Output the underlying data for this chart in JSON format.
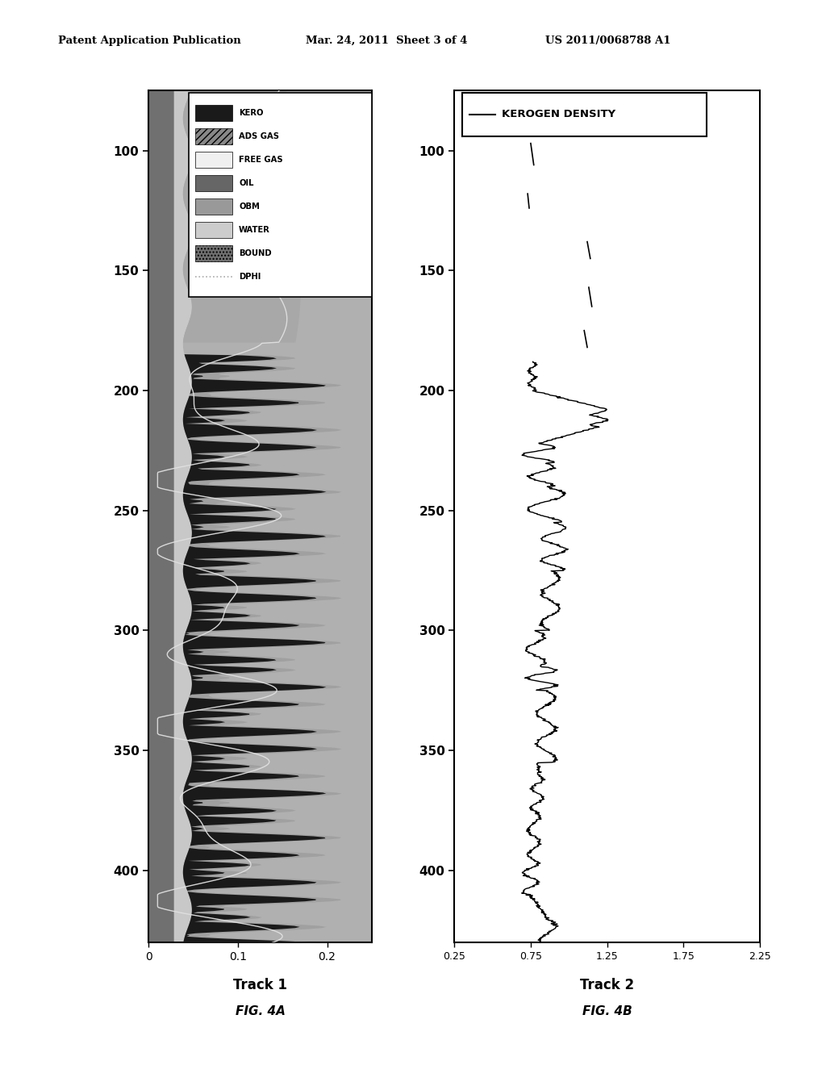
{
  "header_left": "Patent Application Publication",
  "header_center": "Mar. 24, 2011  Sheet 3 of 4",
  "header_right": "US 2011/0068788 A1",
  "depth_min": 75,
  "depth_max": 430,
  "track1_xticks": [
    0,
    0.1,
    0.2
  ],
  "track1_xlabel": "Track 1",
  "track1_fig": "FIG. 4A",
  "track2_xticks": [
    0.25,
    0.75,
    1.25,
    1.75,
    2.25
  ],
  "track2_xlabel": "Track 2",
  "track2_fig": "FIG. 4B",
  "yticks": [
    100,
    150,
    200,
    250,
    300,
    350,
    400
  ],
  "track1_xlim": [
    0,
    0.25
  ],
  "track2_xlim": [
    0.25,
    2.25
  ],
  "background_color": "#ffffff",
  "track1_bg": "#b0b0b0",
  "track2_bg": "#ffffff",
  "legend_items": [
    "KERO",
    "ADS GAS",
    "FREE GAS",
    "OIL",
    "OBM",
    "WATER",
    "BOUND",
    "DPHI"
  ],
  "kero_color": "#000000",
  "ads_gas_color": "#888888",
  "free_gas_color": "#e8e8e8",
  "oil_color": "#606060",
  "obm_color": "#909090",
  "water_color": "#c0c0c0",
  "bound_color": "#707070",
  "dphi_color": "#cccccc"
}
